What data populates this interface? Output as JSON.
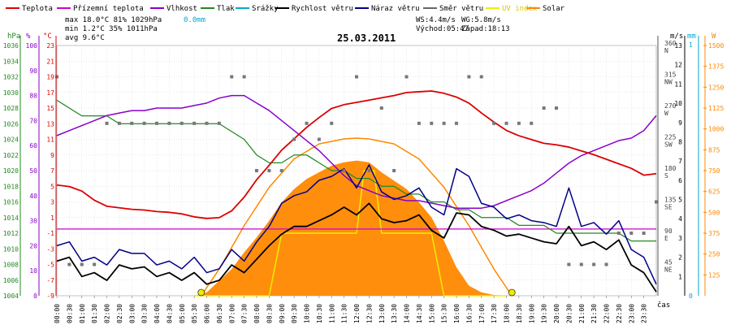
{
  "chart_data": {
    "type": "line",
    "title": "25.03.2011",
    "legend": [
      {
        "label": "Teplota",
        "color": "#dd0000",
        "key": "temp"
      },
      {
        "label": "Přízemní teplota",
        "color": "#cc00cc",
        "key": "ground"
      },
      {
        "label": "Vlhkost",
        "color": "#8800cc",
        "key": "hum"
      },
      {
        "label": "Tlak",
        "color": "#228822",
        "key": "press"
      },
      {
        "label": "Srážky",
        "color": "#00aacc",
        "key": "rain"
      },
      {
        "label": "Rychlost větru",
        "color": "#000000",
        "key": "ws"
      },
      {
        "label": "Náraz větru",
        "color": "#000088",
        "key": "wg"
      },
      {
        "label": "Směr větru",
        "color": "#666666",
        "key": "wd"
      },
      {
        "label": "UV index",
        "color": "#eeee00",
        "key": "uv"
      },
      {
        "label": "Solar",
        "color": "#ff8800",
        "key": "solar"
      }
    ],
    "stats": {
      "max_line": "max 18.0°C  81%  1029hPa",
      "min_line": "min  1.2°C  35%  1011hPa",
      "avg_line": "avg  9.6°C",
      "rain": "0.0mm",
      "ws": "WS:4.4m/s",
      "wg": "WG:5.8m/s",
      "sunrise": "Východ:05:47",
      "sunset": "Západ:18:13"
    },
    "axes": {
      "hpa": {
        "label": "hPa",
        "ticks": [
          "1036",
          "1034",
          "1032",
          "1030",
          "1028",
          "1026",
          "1024",
          "1022",
          "1020",
          "1018",
          "1016",
          "1014",
          "1012",
          "1010",
          "1008",
          "1006",
          "1004"
        ]
      },
      "pct": {
        "label": "%",
        "ticks": [
          "100",
          "90",
          "80",
          "70",
          "60",
          "50",
          "40",
          "30",
          "20",
          "10",
          "0"
        ]
      },
      "degc": {
        "label": "°C",
        "ticks": [
          "23",
          "21",
          "19",
          "17",
          "15",
          "13",
          "11",
          "9",
          "7",
          "5",
          "3",
          "1",
          "-1",
          "-3",
          "-5",
          "-7",
          "-9"
        ]
      },
      "dir": {
        "ticks": [
          "360",
          "315",
          "270",
          "225",
          "180",
          "135",
          "90",
          "45"
        ],
        "labels": [
          "N",
          "NW",
          "W",
          "SW",
          "S",
          "SE",
          "E",
          "NE"
        ]
      },
      "ms": {
        "label": "m/s",
        "ticks": [
          "13",
          "12",
          "11",
          "10",
          "9",
          "8",
          "7",
          "6",
          "5",
          "4",
          "3",
          "2",
          "1"
        ]
      },
      "mm": {
        "label": "mm",
        "top": "1",
        "bottom": "0"
      },
      "w": {
        "label": "W",
        "ticks": [
          "1500",
          "1375",
          "1250",
          "1125",
          "1000",
          "875",
          "750",
          "625",
          "500",
          "375",
          "250",
          "125"
        ]
      },
      "x_ticks": [
        "00:00",
        "00:30",
        "01:00",
        "01:30",
        "02:00",
        "02:30",
        "03:00",
        "03:30",
        "04:00",
        "04:30",
        "05:00",
        "05:30",
        "06:00",
        "06:30",
        "07:00",
        "07:30",
        "08:00",
        "08:30",
        "09:00",
        "09:30",
        "10:00",
        "10:30",
        "11:00",
        "11:30",
        "12:00",
        "12:30",
        "13:00",
        "13:30",
        "14:00",
        "14:30",
        "15:00",
        "15:30",
        "16:00",
        "16:30",
        "17:00",
        "17:30",
        "18:00",
        "18:30",
        "19:00",
        "19:30",
        "20:00",
        "20:30",
        "21:00",
        "21:30",
        "22:00",
        "22:30",
        "23:00",
        "23:30"
      ],
      "x_label": "čas",
      "ranges": {
        "temp": [
          -9,
          24
        ],
        "hum": [
          0,
          100
        ],
        "press": [
          1004,
          1036
        ],
        "wind": [
          0,
          13
        ],
        "dir": [
          0,
          360
        ],
        "solar": [
          0,
          1500
        ]
      }
    },
    "series": {
      "temp": {
        "x": [
          0,
          0.5,
          1,
          1.5,
          2,
          2.5,
          3,
          3.5,
          4,
          4.5,
          5,
          5.5,
          6,
          6.5,
          7,
          7.5,
          8,
          8.5,
          9,
          9.5,
          10,
          10.5,
          11,
          11.5,
          12,
          12.5,
          13,
          13.5,
          14,
          14.5,
          15,
          15.5,
          16,
          16.5,
          17,
          17.5,
          18,
          18.5,
          19,
          19.5,
          20,
          20.5,
          21,
          21.5,
          22,
          22.5,
          23,
          23.5,
          24
        ],
        "values": [
          5.6,
          5.4,
          4.8,
          3.6,
          2.8,
          2.6,
          2.4,
          2.3,
          2.1,
          2.0,
          1.8,
          1.4,
          1.2,
          1.3,
          2.2,
          4.0,
          6.3,
          8.2,
          10.2,
          11.7,
          13.2,
          14.5,
          15.7,
          16.2,
          16.5,
          16.8,
          17.1,
          17.4,
          17.8,
          17.9,
          18.0,
          17.7,
          17.2,
          16.4,
          15.1,
          13.9,
          12.8,
          12.1,
          11.6,
          11.1,
          10.9,
          10.6,
          10.1,
          9.6,
          9.0,
          8.4,
          7.8,
          6.9,
          7.1
        ]
      },
      "ground": {
        "x": [
          0,
          24
        ],
        "values": [
          -0.2,
          -0.2
        ]
      },
      "hum": {
        "x": [
          0,
          0.5,
          1,
          1.5,
          2,
          2.5,
          3,
          3.5,
          4,
          4.5,
          5,
          5.5,
          6,
          6.5,
          7,
          7.5,
          8,
          8.5,
          9,
          9.5,
          10,
          10.5,
          11,
          11.5,
          12,
          12.5,
          13,
          13.5,
          14,
          14.5,
          15,
          15.5,
          16,
          16.5,
          17,
          17.5,
          18,
          18.5,
          19,
          19.5,
          20,
          20.5,
          21,
          21.5,
          22,
          22.5,
          23,
          23.5,
          24
        ],
        "values": [
          64,
          66,
          68,
          70,
          72,
          73,
          74,
          74,
          75,
          75,
          75,
          76,
          77,
          79,
          80,
          80,
          77,
          74,
          70,
          66,
          62,
          58,
          53,
          48,
          44,
          42,
          40,
          39,
          38,
          38,
          37,
          36,
          35,
          35,
          35,
          36,
          38,
          40,
          42,
          45,
          49,
          53,
          56,
          58,
          60,
          62,
          63,
          66,
          72
        ]
      },
      "press": {
        "x": [
          0,
          0.5,
          1,
          1.5,
          2,
          2.5,
          3,
          3.5,
          4,
          4.5,
          5,
          5.5,
          6,
          6.5,
          7,
          7.5,
          8,
          8.5,
          9,
          9.5,
          10,
          10.5,
          11,
          11.5,
          12,
          12.5,
          13,
          13.5,
          14,
          14.5,
          15,
          15.5,
          16,
          16.5,
          17,
          17.5,
          18,
          18.5,
          19,
          19.5,
          20,
          20.5,
          21,
          21.5,
          22,
          22.5,
          23,
          23.5,
          24
        ],
        "values": [
          1029,
          1028,
          1027,
          1027,
          1027,
          1026,
          1026,
          1026,
          1026,
          1026,
          1026,
          1026,
          1026,
          1026,
          1025,
          1024,
          1022,
          1021,
          1021,
          1022,
          1022,
          1021,
          1020,
          1020,
          1019,
          1019,
          1018,
          1018,
          1017,
          1017,
          1016,
          1016,
          1015,
          1015,
          1014,
          1014,
          1014,
          1013,
          1013,
          1013,
          1012,
          1012,
          1012,
          1012,
          1012,
          1012,
          1011,
          1011,
          1011
        ]
      },
      "ws": {
        "x": [
          0,
          0.5,
          1,
          1.5,
          2,
          2.5,
          3,
          3.5,
          4,
          4.5,
          5,
          5.5,
          6,
          6.5,
          7,
          7.5,
          8,
          8.5,
          9,
          9.5,
          10,
          10.5,
          11,
          11.5,
          12,
          12.5,
          13,
          13.5,
          14,
          14.5,
          15,
          15.5,
          16,
          16.5,
          17,
          17.5,
          18,
          18.5,
          19,
          19.5,
          20,
          20.5,
          21,
          21.5,
          22,
          22.5,
          23,
          23.5,
          24
        ],
        "values": [
          1.8,
          2.0,
          1.0,
          1.2,
          0.8,
          1.6,
          1.4,
          1.5,
          1.0,
          1.2,
          0.8,
          1.2,
          0.6,
          0.8,
          1.6,
          1.2,
          1.9,
          2.6,
          3.2,
          3.6,
          3.6,
          3.9,
          4.2,
          4.6,
          4.2,
          4.8,
          4.0,
          3.8,
          3.9,
          4.2,
          3.4,
          3.0,
          4.3,
          4.2,
          3.6,
          3.4,
          3.1,
          3.2,
          3.0,
          2.8,
          2.7,
          3.6,
          2.6,
          2.8,
          2.4,
          2.9,
          1.6,
          1.2,
          0.2
        ]
      },
      "wg": {
        "x": [
          0,
          0.5,
          1,
          1.5,
          2,
          2.5,
          3,
          3.5,
          4,
          4.5,
          5,
          5.5,
          6,
          6.5,
          7,
          7.5,
          8,
          8.5,
          9,
          9.5,
          10,
          10.5,
          11,
          11.5,
          12,
          12.5,
          13,
          13.5,
          14,
          14.5,
          15,
          15.5,
          16,
          16.5,
          17,
          17.5,
          18,
          18.5,
          19,
          19.5,
          20,
          20.5,
          21,
          21.5,
          22,
          22.5,
          23,
          23.5,
          24
        ],
        "values": [
          2.6,
          2.8,
          1.8,
          2.0,
          1.6,
          2.4,
          2.2,
          2.2,
          1.6,
          1.8,
          1.4,
          2.0,
          1.2,
          1.4,
          2.4,
          1.8,
          2.8,
          3.6,
          4.8,
          5.2,
          5.4,
          6.0,
          6.2,
          6.6,
          5.6,
          6.8,
          5.4,
          5.0,
          5.2,
          5.6,
          4.6,
          4.2,
          6.6,
          6.2,
          4.8,
          4.6,
          4.0,
          4.2,
          3.9,
          3.8,
          3.6,
          5.6,
          3.6,
          3.8,
          3.2,
          3.9,
          2.4,
          2.0,
          0.6
        ]
      },
      "wd": {
        "x": [
          0,
          0.5,
          1,
          1.5,
          2,
          2.5,
          3,
          3.5,
          4,
          4.5,
          5,
          5.5,
          6,
          6.5,
          7,
          7.5,
          8,
          8.5,
          9,
          9.5,
          10,
          10.5,
          11,
          11.5,
          12,
          12.5,
          13,
          13.5,
          14,
          14.5,
          15,
          15.5,
          16,
          16.5,
          17,
          17.5,
          18,
          18.5,
          19,
          19.5,
          20,
          20.5,
          21,
          21.5,
          22,
          22.5,
          23,
          23.5,
          24
        ],
        "values": [
          315,
          45,
          45,
          45,
          248,
          248,
          248,
          248,
          248,
          248,
          248,
          248,
          248,
          248,
          315,
          315,
          180,
          180,
          180,
          225,
          248,
          225,
          248,
          180,
          315,
          180,
          270,
          180,
          315,
          248,
          248,
          248,
          248,
          315,
          315,
          248,
          248,
          248,
          248,
          270,
          270,
          45,
          45,
          45,
          45,
          90,
          90,
          90,
          135
        ]
      },
      "solar": {
        "x": [
          5.5,
          6,
          6.5,
          7,
          7.5,
          8,
          8.5,
          9,
          9.5,
          10,
          10.5,
          11,
          11.5,
          12,
          12.5,
          13,
          13.5,
          14,
          14.5,
          15,
          15.5,
          16,
          16.5,
          17,
          17.5,
          18
        ],
        "values": [
          0,
          20,
          90,
          160,
          260,
          350,
          450,
          560,
          640,
          700,
          740,
          780,
          800,
          810,
          800,
          740,
          690,
          640,
          560,
          470,
          330,
          170,
          60,
          20,
          5,
          0
        ]
      },
      "solar_max": {
        "x": [
          5.78,
          6.5,
          7.5,
          8.5,
          9.5,
          10.5,
          11.5,
          12,
          12.5,
          13.5,
          14.5,
          15.5,
          16.5,
          17.5,
          18.22
        ],
        "values": [
          0,
          160,
          420,
          650,
          820,
          910,
          940,
          945,
          940,
          910,
          820,
          650,
          420,
          160,
          0
        ]
      },
      "uv": {
        "x": [
          5.5,
          8.5,
          9,
          12,
          12.3,
          12.7,
          13,
          15,
          15.5,
          18
        ],
        "values": [
          0,
          0,
          2.5,
          2.5,
          5,
          5,
          2.5,
          2.5,
          0,
          0
        ]
      }
    }
  }
}
